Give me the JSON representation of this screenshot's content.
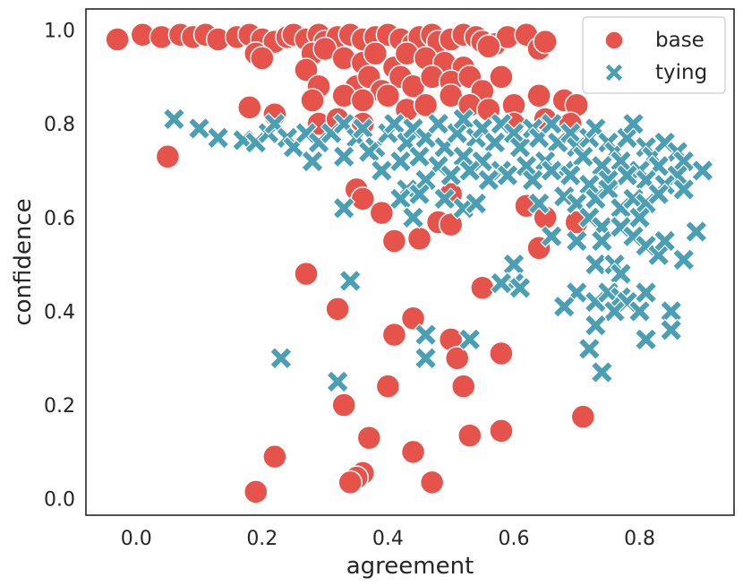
{
  "chart_data": {
    "type": "scatter",
    "title": "",
    "xlabel": "agreement",
    "ylabel": "confidence",
    "xlim": [
      -0.08,
      0.95
    ],
    "ylim": [
      -0.035,
      1.045
    ],
    "xticks": [
      0.0,
      0.2,
      0.4,
      0.6,
      0.8
    ],
    "yticks": [
      0.0,
      0.2,
      0.4,
      0.6,
      0.8,
      1.0
    ],
    "grid": false,
    "legend_position": "top-right",
    "series": [
      {
        "name": "base",
        "marker": "circle",
        "color": "#e5534b",
        "points": [
          [
            -0.03,
            0.98
          ],
          [
            0.01,
            0.99
          ],
          [
            0.04,
            0.985
          ],
          [
            0.07,
            0.99
          ],
          [
            0.09,
            0.985
          ],
          [
            0.11,
            0.99
          ],
          [
            0.13,
            0.98
          ],
          [
            0.16,
            0.985
          ],
          [
            0.18,
            0.99
          ],
          [
            0.2,
            0.98
          ],
          [
            0.22,
            0.975
          ],
          [
            0.24,
            0.985
          ],
          [
            0.25,
            0.99
          ],
          [
            0.27,
            0.98
          ],
          [
            0.29,
            0.99
          ],
          [
            0.3,
            0.975
          ],
          [
            0.32,
            0.985
          ],
          [
            0.34,
            0.99
          ],
          [
            0.36,
            0.98
          ],
          [
            0.38,
            0.985
          ],
          [
            0.4,
            0.99
          ],
          [
            0.42,
            0.98
          ],
          [
            0.44,
            0.97
          ],
          [
            0.45,
            0.985
          ],
          [
            0.47,
            0.99
          ],
          [
            0.48,
            0.975
          ],
          [
            0.5,
            0.98
          ],
          [
            0.52,
            0.99
          ],
          [
            0.54,
            0.985
          ],
          [
            0.55,
            0.975
          ],
          [
            0.57,
            0.97
          ],
          [
            0.59,
            0.985
          ],
          [
            0.62,
            0.99
          ],
          [
            0.64,
            0.96
          ],
          [
            0.65,
            0.975
          ],
          [
            0.19,
            0.95
          ],
          [
            0.2,
            0.94
          ],
          [
            0.28,
            0.95
          ],
          [
            0.3,
            0.96
          ],
          [
            0.33,
            0.94
          ],
          [
            0.36,
            0.93
          ],
          [
            0.38,
            0.95
          ],
          [
            0.41,
            0.92
          ],
          [
            0.43,
            0.95
          ],
          [
            0.46,
            0.94
          ],
          [
            0.49,
            0.93
          ],
          [
            0.52,
            0.92
          ],
          [
            0.56,
            0.965
          ],
          [
            0.58,
            0.9
          ],
          [
            0.27,
            0.915
          ],
          [
            0.29,
            0.88
          ],
          [
            0.35,
            0.88
          ],
          [
            0.37,
            0.9
          ],
          [
            0.39,
            0.87
          ],
          [
            0.42,
            0.9
          ],
          [
            0.44,
            0.88
          ],
          [
            0.47,
            0.9
          ],
          [
            0.5,
            0.89
          ],
          [
            0.53,
            0.9
          ],
          [
            0.55,
            0.87
          ],
          [
            0.28,
            0.85
          ],
          [
            0.33,
            0.86
          ],
          [
            0.36,
            0.85
          ],
          [
            0.4,
            0.86
          ],
          [
            0.43,
            0.83
          ],
          [
            0.46,
            0.84
          ],
          [
            0.5,
            0.86
          ],
          [
            0.53,
            0.84
          ],
          [
            0.56,
            0.83
          ],
          [
            0.6,
            0.84
          ],
          [
            0.64,
            0.86
          ],
          [
            0.68,
            0.85
          ],
          [
            0.7,
            0.84
          ],
          [
            0.18,
            0.835
          ],
          [
            0.22,
            0.82
          ],
          [
            0.29,
            0.8
          ],
          [
            0.32,
            0.81
          ],
          [
            0.36,
            0.8
          ],
          [
            0.6,
            0.8
          ],
          [
            0.65,
            0.81
          ],
          [
            0.69,
            0.8
          ],
          [
            0.05,
            0.73
          ],
          [
            0.35,
            0.66
          ],
          [
            0.36,
            0.64
          ],
          [
            0.39,
            0.61
          ],
          [
            0.41,
            0.55
          ],
          [
            0.45,
            0.555
          ],
          [
            0.48,
            0.59
          ],
          [
            0.5,
            0.65
          ],
          [
            0.5,
            0.585
          ],
          [
            0.62,
            0.625
          ],
          [
            0.65,
            0.6
          ],
          [
            0.64,
            0.535
          ],
          [
            0.7,
            0.59
          ],
          [
            0.27,
            0.48
          ],
          [
            0.32,
            0.405
          ],
          [
            0.55,
            0.45
          ],
          [
            0.44,
            0.385
          ],
          [
            0.41,
            0.35
          ],
          [
            0.5,
            0.34
          ],
          [
            0.51,
            0.3
          ],
          [
            0.58,
            0.31
          ],
          [
            0.52,
            0.24
          ],
          [
            0.4,
            0.24
          ],
          [
            0.33,
            0.2
          ],
          [
            0.37,
            0.13
          ],
          [
            0.53,
            0.135
          ],
          [
            0.58,
            0.145
          ],
          [
            0.71,
            0.175
          ],
          [
            0.22,
            0.09
          ],
          [
            0.44,
            0.1
          ],
          [
            0.36,
            0.055
          ],
          [
            0.35,
            0.045
          ],
          [
            0.34,
            0.035
          ],
          [
            0.47,
            0.035
          ],
          [
            0.19,
            0.015
          ]
        ]
      },
      {
        "name": "tying",
        "marker": "x",
        "color": "#4b9fb4",
        "points": [
          [
            0.06,
            0.81
          ],
          [
            0.1,
            0.79
          ],
          [
            0.13,
            0.77
          ],
          [
            0.17,
            0.765
          ],
          [
            0.19,
            0.76
          ],
          [
            0.21,
            0.78
          ],
          [
            0.22,
            0.8
          ],
          [
            0.24,
            0.77
          ],
          [
            0.25,
            0.75
          ],
          [
            0.27,
            0.78
          ],
          [
            0.29,
            0.76
          ],
          [
            0.31,
            0.78
          ],
          [
            0.33,
            0.8
          ],
          [
            0.35,
            0.77
          ],
          [
            0.36,
            0.79
          ],
          [
            0.38,
            0.75
          ],
          [
            0.4,
            0.78
          ],
          [
            0.41,
            0.8
          ],
          [
            0.43,
            0.76
          ],
          [
            0.44,
            0.79
          ],
          [
            0.46,
            0.77
          ],
          [
            0.48,
            0.8
          ],
          [
            0.49,
            0.75
          ],
          [
            0.51,
            0.78
          ],
          [
            0.52,
            0.81
          ],
          [
            0.54,
            0.77
          ],
          [
            0.55,
            0.79
          ],
          [
            0.57,
            0.76
          ],
          [
            0.58,
            0.8
          ],
          [
            0.6,
            0.78
          ],
          [
            0.61,
            0.75
          ],
          [
            0.63,
            0.79
          ],
          [
            0.64,
            0.77
          ],
          [
            0.66,
            0.8
          ],
          [
            0.67,
            0.76
          ],
          [
            0.69,
            0.78
          ],
          [
            0.7,
            0.75
          ],
          [
            0.72,
            0.77
          ],
          [
            0.73,
            0.79
          ],
          [
            0.75,
            0.76
          ],
          [
            0.76,
            0.74
          ],
          [
            0.78,
            0.77
          ],
          [
            0.79,
            0.8
          ],
          [
            0.81,
            0.75
          ],
          [
            0.82,
            0.73
          ],
          [
            0.84,
            0.76
          ],
          [
            0.86,
            0.74
          ],
          [
            0.87,
            0.72
          ],
          [
            0.9,
            0.7
          ],
          [
            0.28,
            0.72
          ],
          [
            0.33,
            0.73
          ],
          [
            0.37,
            0.74
          ],
          [
            0.42,
            0.72
          ],
          [
            0.45,
            0.73
          ],
          [
            0.48,
            0.71
          ],
          [
            0.52,
            0.73
          ],
          [
            0.55,
            0.72
          ],
          [
            0.58,
            0.7
          ],
          [
            0.62,
            0.71
          ],
          [
            0.65,
            0.72
          ],
          [
            0.68,
            0.7
          ],
          [
            0.71,
            0.73
          ],
          [
            0.74,
            0.71
          ],
          [
            0.77,
            0.72
          ],
          [
            0.8,
            0.7
          ],
          [
            0.83,
            0.71
          ],
          [
            0.86,
            0.69
          ],
          [
            0.39,
            0.7
          ],
          [
            0.43,
            0.66
          ],
          [
            0.46,
            0.68
          ],
          [
            0.5,
            0.69
          ],
          [
            0.53,
            0.7
          ],
          [
            0.56,
            0.68
          ],
          [
            0.59,
            0.69
          ],
          [
            0.63,
            0.68
          ],
          [
            0.66,
            0.7
          ],
          [
            0.69,
            0.69
          ],
          [
            0.72,
            0.67
          ],
          [
            0.75,
            0.68
          ],
          [
            0.78,
            0.69
          ],
          [
            0.81,
            0.68
          ],
          [
            0.84,
            0.67
          ],
          [
            0.87,
            0.66
          ],
          [
            0.42,
            0.64
          ],
          [
            0.45,
            0.65
          ],
          [
            0.49,
            0.64
          ],
          [
            0.52,
            0.62
          ],
          [
            0.54,
            0.63
          ],
          [
            0.64,
            0.63
          ],
          [
            0.68,
            0.645
          ],
          [
            0.7,
            0.63
          ],
          [
            0.73,
            0.64
          ],
          [
            0.75,
            0.66
          ],
          [
            0.77,
            0.62
          ],
          [
            0.79,
            0.64
          ],
          [
            0.81,
            0.63
          ],
          [
            0.83,
            0.65
          ],
          [
            0.33,
            0.62
          ],
          [
            0.44,
            0.6
          ],
          [
            0.6,
            0.5
          ],
          [
            0.6,
            0.46
          ],
          [
            0.61,
            0.45
          ],
          [
            0.66,
            0.56
          ],
          [
            0.7,
            0.55
          ],
          [
            0.72,
            0.6
          ],
          [
            0.74,
            0.58
          ],
          [
            0.74,
            0.55
          ],
          [
            0.77,
            0.58
          ],
          [
            0.79,
            0.56
          ],
          [
            0.8,
            0.6
          ],
          [
            0.81,
            0.54
          ],
          [
            0.83,
            0.52
          ],
          [
            0.84,
            0.55
          ],
          [
            0.87,
            0.51
          ],
          [
            0.89,
            0.57
          ],
          [
            0.73,
            0.5
          ],
          [
            0.76,
            0.5
          ],
          [
            0.77,
            0.48
          ],
          [
            0.34,
            0.465
          ],
          [
            0.58,
            0.46
          ],
          [
            0.7,
            0.44
          ],
          [
            0.73,
            0.42
          ],
          [
            0.75,
            0.44
          ],
          [
            0.77,
            0.43
          ],
          [
            0.78,
            0.42
          ],
          [
            0.8,
            0.4
          ],
          [
            0.81,
            0.44
          ],
          [
            0.68,
            0.41
          ],
          [
            0.76,
            0.4
          ],
          [
            0.85,
            0.4
          ],
          [
            0.73,
            0.37
          ],
          [
            0.72,
            0.32
          ],
          [
            0.74,
            0.27
          ],
          [
            0.81,
            0.34
          ],
          [
            0.85,
            0.36
          ],
          [
            0.46,
            0.35
          ],
          [
            0.46,
            0.3
          ],
          [
            0.53,
            0.34
          ],
          [
            0.23,
            0.3
          ],
          [
            0.32,
            0.25
          ]
        ]
      }
    ]
  }
}
